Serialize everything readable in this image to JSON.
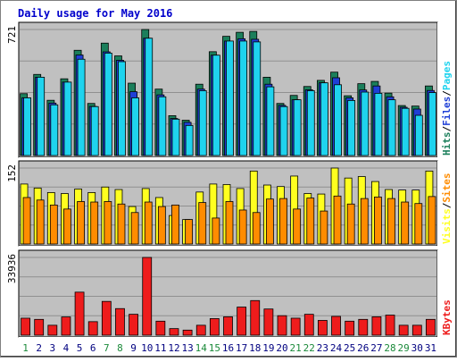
{
  "chart_data": {
    "type": "bar",
    "title": "Daily usage for May 2016",
    "categories": [
      "1",
      "2",
      "3",
      "4",
      "5",
      "6",
      "7",
      "8",
      "9",
      "10",
      "11",
      "12",
      "13",
      "14",
      "15",
      "16",
      "17",
      "18",
      "19",
      "20",
      "21",
      "22",
      "23",
      "24",
      "25",
      "26",
      "27",
      "28",
      "29",
      "30",
      "31"
    ],
    "weekend_days": [
      "1",
      "7",
      "8",
      "14",
      "15",
      "21",
      "22",
      "28",
      "29"
    ],
    "colors": {
      "title": "#0000cc",
      "background": "#c0c0c0",
      "hits": "#1b7f5b",
      "files": "#1f3fd6",
      "pages": "#1fd3ee",
      "visits": "#ffff1f",
      "sites": "#ff8c00",
      "kbytes": "#ee1c1c",
      "weekend_label": "#1b8a3a",
      "weekday_label": "#000080"
    },
    "panels": [
      {
        "id": "hits-files-pages",
        "max_label": "721",
        "ymax": 721,
        "legend": [
          {
            "label": "Hits",
            "color": "#1b7f5b"
          },
          {
            "label": "/",
            "color": "#000000"
          },
          {
            "label": "Files",
            "color": "#1f3fd6"
          },
          {
            "label": "/",
            "color": "#000000"
          },
          {
            "label": "Pages",
            "color": "#1fd3ee"
          }
        ],
        "series": [
          {
            "name": "Hits",
            "values": [
              354,
              464,
              316,
              439,
              602,
              298,
              643,
              570,
              414,
              721,
              380,
              228,
              202,
              408,
              594,
              682,
              705,
              710,
              448,
              298,
              344,
              395,
              430,
              477,
              342,
              411,
              424,
              357,
              286,
              283,
              398
            ]
          },
          {
            "name": "Files",
            "values": [
              330,
              448,
              300,
              420,
              575,
              281,
              593,
              545,
              365,
              671,
              347,
              212,
              190,
              380,
              574,
              655,
              668,
              665,
              408,
              287,
              319,
              376,
              416,
              445,
              330,
              375,
              398,
              336,
              276,
              266,
              372
            ]
          },
          {
            "name": "Pages",
            "values": [
              330,
              448,
              290,
              420,
              551,
              280,
              586,
              537,
              330,
              671,
              336,
              208,
              172,
              371,
              574,
              655,
              655,
              650,
              393,
              280,
              319,
              371,
              416,
              405,
              315,
              363,
              356,
              319,
              270,
              230,
              360
            ]
          }
        ]
      },
      {
        "id": "visits-sites",
        "max_label": "152",
        "ymax": 152,
        "legend": [
          {
            "label": "Visits",
            "color": "#ffff1f"
          },
          {
            "label": "/",
            "color": "#000000"
          },
          {
            "label": "Sites",
            "color": "#ff8c00"
          }
        ],
        "series": [
          {
            "name": "Visits",
            "values": [
              120,
              112,
              103,
              101,
              110,
              103,
              114,
              109,
              75,
              111,
              93,
              57,
              49,
              104,
              120,
              119,
              111,
              146,
              118,
              115,
              136,
              101,
              100,
              152,
              132,
              135,
              125,
              109,
              108,
              108,
              146
            ]
          },
          {
            "name": "Sites",
            "values": [
              93,
              88,
              78,
              70,
              85,
              84,
              85,
              80,
              63,
              84,
              75,
              78,
              49,
              83,
              52,
              85,
              68,
              63,
              90,
              91,
              70,
              92,
              66,
              96,
              80,
              91,
              94,
              91,
              84,
              81,
              95
            ]
          }
        ]
      },
      {
        "id": "kbytes",
        "max_label": "33936",
        "ymax": 33936,
        "legend": [
          {
            "label": "KBytes",
            "color": "#ee1c1c"
          }
        ],
        "series": [
          {
            "name": "KBytes",
            "values": [
              7422,
              6902,
              4336,
              7968,
              18780,
              5908,
              14743,
              11610,
              9119,
              33936,
              6117,
              2871,
              2216,
              4336,
              7240,
              8029,
              12267,
              15106,
              11428,
              8514,
              7422,
              9119,
              6446,
              8212,
              6117,
              6902,
              8029,
              8764,
              4336,
              4336,
              6902
            ]
          }
        ]
      }
    ]
  }
}
